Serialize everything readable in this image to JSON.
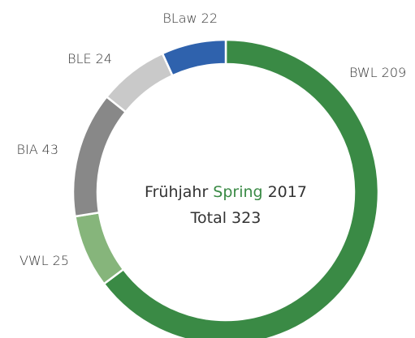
{
  "chart_data": {
    "type": "donut",
    "categories": [
      "BWL",
      "VWL",
      "BIA",
      "BLE",
      "BLaw"
    ],
    "values": [
      209,
      25,
      43,
      24,
      22
    ],
    "colors": [
      "#3a8a45",
      "#86b57b",
      "#888888",
      "#c9c9c9",
      "#2f62ad"
    ],
    "title": [
      "Frühjahr",
      "Spring",
      "2017"
    ],
    "title_highlight": 1,
    "title_highlight_color": "#3a8a45",
    "total_label": "Total",
    "total": 323
  }
}
